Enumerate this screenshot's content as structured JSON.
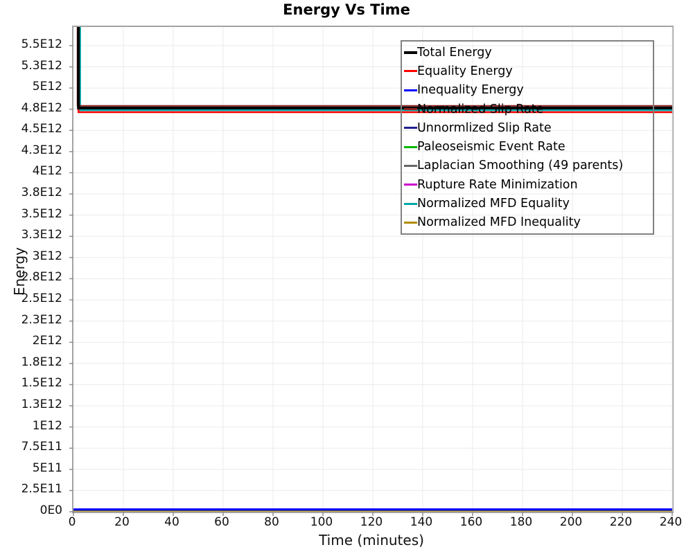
{
  "chart_data": {
    "type": "line",
    "title": "Energy Vs Time",
    "xlabel": "Time (minutes)",
    "ylabel": "Energy",
    "xlim": [
      0,
      240
    ],
    "ylim": [
      0,
      5720000000000.0
    ],
    "grid": true,
    "legend_position": "top-right",
    "x_ticks": [
      {
        "v": 0,
        "label": "0"
      },
      {
        "v": 20,
        "label": "20"
      },
      {
        "v": 40,
        "label": "40"
      },
      {
        "v": 60,
        "label": "60"
      },
      {
        "v": 80,
        "label": "80"
      },
      {
        "v": 100,
        "label": "100"
      },
      {
        "v": 120,
        "label": "120"
      },
      {
        "v": 140,
        "label": "140"
      },
      {
        "v": 160,
        "label": "160"
      },
      {
        "v": 180,
        "label": "180"
      },
      {
        "v": 200,
        "label": "200"
      },
      {
        "v": 220,
        "label": "220"
      },
      {
        "v": 240,
        "label": "240"
      }
    ],
    "y_ticks": [
      {
        "v": 0,
        "label": "0E0"
      },
      {
        "v": 250000000000.0,
        "label": "2.5E11"
      },
      {
        "v": 500000000000.0,
        "label": "5E11"
      },
      {
        "v": 750000000000.0,
        "label": "7.5E11"
      },
      {
        "v": 1000000000000.0,
        "label": "1E12"
      },
      {
        "v": 1250000000000.0,
        "label": "1.3E12"
      },
      {
        "v": 1500000000000.0,
        "label": "1.5E12"
      },
      {
        "v": 1750000000000.0,
        "label": "1.8E12"
      },
      {
        "v": 2000000000000.0,
        "label": "2E12"
      },
      {
        "v": 2250000000000.0,
        "label": "2.3E12"
      },
      {
        "v": 2500000000000.0,
        "label": "2.5E12"
      },
      {
        "v": 2750000000000.0,
        "label": "2.8E12"
      },
      {
        "v": 3000000000000.0,
        "label": "3E12"
      },
      {
        "v": 3250000000000.0,
        "label": "3.3E12"
      },
      {
        "v": 3500000000000.0,
        "label": "3.5E12"
      },
      {
        "v": 3750000000000.0,
        "label": "3.8E12"
      },
      {
        "v": 4000000000000.0,
        "label": "4E12"
      },
      {
        "v": 4250000000000.0,
        "label": "4.3E12"
      },
      {
        "v": 4500000000000.0,
        "label": "4.5E12"
      },
      {
        "v": 4750000000000.0,
        "label": "4.8E12"
      },
      {
        "v": 5000000000000.0,
        "label": "5E12"
      },
      {
        "v": 5250000000000.0,
        "label": "5.3E12"
      },
      {
        "v": 5500000000000.0,
        "label": "5.5E12"
      }
    ],
    "series": [
      {
        "name": "Total Energy",
        "color": "#000000",
        "width": 4,
        "points": [
          [
            2.0,
            5720000000000.0
          ],
          [
            2.0,
            4765000000000.0
          ],
          [
            240,
            4765000000000.0
          ]
        ]
      },
      {
        "name": "Equality Energy",
        "color": "#ff0000",
        "width": 2.5,
        "points": [
          [
            2.0,
            5720000000000.0
          ],
          [
            2.0,
            4715000000000.0
          ],
          [
            240,
            4715000000000.0
          ]
        ]
      },
      {
        "name": "Inequality Energy",
        "color": "#0000ff",
        "width": 2.5,
        "points": [
          [
            0,
            30000000000.0
          ],
          [
            240,
            30000000000.0
          ]
        ]
      },
      {
        "name": "Normalized Slip Rate",
        "color": "#8b2323",
        "width": 2,
        "points": [
          [
            1.6,
            5720000000000.0
          ],
          [
            1.6,
            4790000000000.0
          ],
          [
            240,
            4790000000000.0
          ]
        ]
      },
      {
        "name": "Unnormlized Slip Rate",
        "color": "#20208f",
        "width": 2,
        "points": [
          [
            0,
            22000000000.0
          ],
          [
            240,
            22000000000.0
          ]
        ]
      },
      {
        "name": "Paleoseismic Event Rate",
        "color": "#00b800",
        "width": 2,
        "points": [
          [
            0,
            20000000000.0
          ],
          [
            240,
            20000000000.0
          ]
        ]
      },
      {
        "name": "Laplacian Smoothing (49 parents)",
        "color": "#666666",
        "width": 2,
        "points": [
          [
            0,
            18000000000.0
          ],
          [
            240,
            18000000000.0
          ]
        ]
      },
      {
        "name": "Rupture Rate Minimization",
        "color": "#cc00cc",
        "width": 2,
        "points": [
          [
            0,
            16000000000.0
          ],
          [
            240,
            16000000000.0
          ]
        ]
      },
      {
        "name": "Normalized MFD Equality",
        "color": "#00a8a8",
        "width": 3,
        "points": [
          [
            2.6,
            5720000000000.0
          ],
          [
            2.6,
            4740000000000.0
          ],
          [
            240,
            4740000000000.0
          ]
        ]
      },
      {
        "name": "Normalized MFD Inequality",
        "color": "#b08d00",
        "width": 2,
        "points": [
          [
            0,
            10000000000.0
          ],
          [
            240,
            10000000000.0
          ]
        ]
      }
    ],
    "style": {
      "grid_color": "#ebebeb",
      "axis_color": "#a3a3a3",
      "tick_color": "#8f8f8f"
    }
  }
}
